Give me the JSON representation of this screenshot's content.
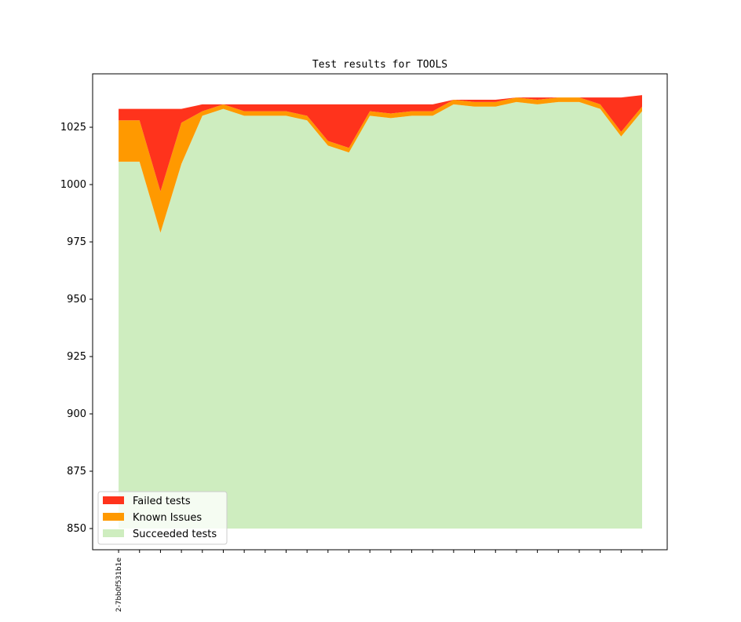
{
  "chart_data": {
    "type": "area",
    "title": "Test results for TOOLS",
    "xlabel": "",
    "ylabel": "",
    "baseline": 850,
    "ylim": [
      840.75,
      1048.3
    ],
    "xlim": [
      -1.24,
      26.2
    ],
    "yticks": [
      850,
      875,
      900,
      925,
      950,
      975,
      1000,
      1025
    ],
    "x_tick_labels": [
      "2-7bb0f531b1e",
      "",
      "",
      "",
      "",
      "",
      "",
      "",
      "",
      "",
      "",
      "",
      "",
      "",
      "",
      "",
      "",
      "",
      "",
      "",
      "",
      "",
      "",
      "",
      "",
      ""
    ],
    "legend_position": "lower-left",
    "series": [
      {
        "name": "Failed tests",
        "color": "#ff331c",
        "values": [
          5,
          5,
          36,
          6,
          3,
          0,
          3,
          3,
          3,
          5,
          16,
          19,
          3,
          4,
          3,
          3,
          0,
          1,
          1,
          0,
          1,
          0,
          0,
          3,
          15,
          5
        ]
      },
      {
        "name": "Known Issues",
        "color": "#ff9900",
        "values": [
          18,
          18,
          18,
          18,
          2,
          2,
          2,
          2,
          2,
          2,
          2,
          2,
          2,
          2,
          2,
          2,
          2,
          2,
          2,
          2,
          2,
          2,
          2,
          2,
          2,
          2
        ]
      },
      {
        "name": "Succeeded tests",
        "color": "#ceedbf",
        "values": [
          1010,
          1010,
          979,
          1009,
          1030,
          1033,
          1030,
          1030,
          1030,
          1028,
          1017,
          1014,
          1030,
          1029,
          1030,
          1030,
          1035,
          1034,
          1034,
          1036,
          1035,
          1036,
          1036,
          1033,
          1021,
          1032
        ]
      }
    ]
  }
}
